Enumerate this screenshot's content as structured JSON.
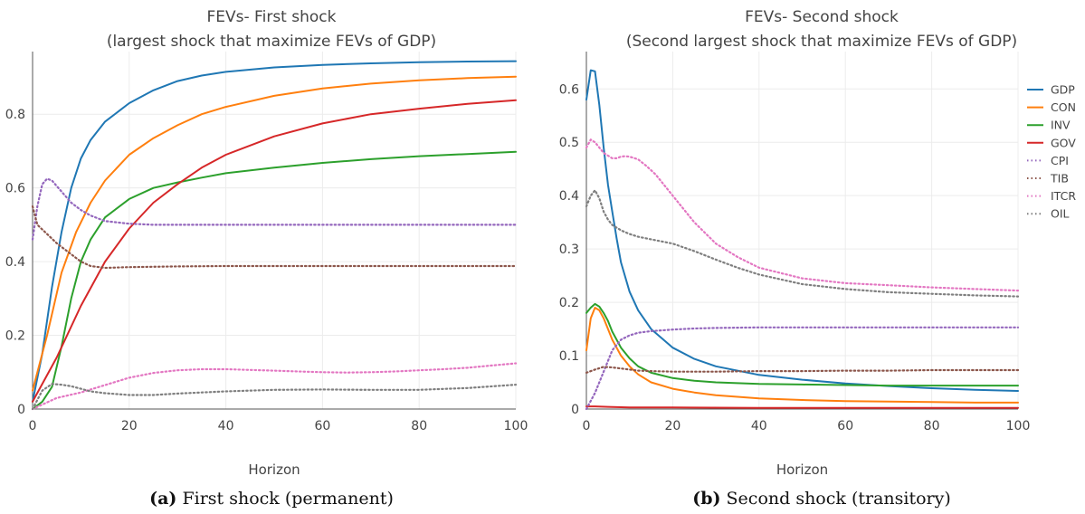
{
  "captions": [
    {
      "tag": "(a)",
      "text": " First shock (permanent)"
    },
    {
      "tag": "(b)",
      "text": " Second shock (transitory)"
    }
  ],
  "chart_data": [
    {
      "type": "line",
      "title": "FEVs- First shock",
      "subtitle": "(largest shock that maximize FEVs of GDP)",
      "xlabel": "Horizon",
      "ylabel": "",
      "xlim": [
        0,
        100
      ],
      "ylim": [
        0,
        0.97
      ],
      "xticks": [
        0,
        20,
        40,
        60,
        80,
        100
      ],
      "yticks": [
        0,
        0.2,
        0.4,
        0.6,
        0.8
      ],
      "yticklabels": [
        "0",
        "0.2",
        "0.4",
        "0.6",
        "0.8"
      ],
      "grid": true,
      "legend": "none",
      "series": [
        {
          "name": "GDP",
          "color": "#1f77b4",
          "style": "solid",
          "x": [
            0,
            2,
            4,
            6,
            8,
            10,
            12,
            15,
            18,
            20,
            25,
            30,
            35,
            40,
            50,
            60,
            70,
            80,
            90,
            100
          ],
          "y": [
            0.02,
            0.15,
            0.33,
            0.48,
            0.6,
            0.68,
            0.73,
            0.78,
            0.81,
            0.83,
            0.865,
            0.89,
            0.905,
            0.915,
            0.927,
            0.934,
            0.938,
            0.941,
            0.943,
            0.944
          ]
        },
        {
          "name": "CON",
          "color": "#ff7f0e",
          "style": "solid",
          "x": [
            0,
            3,
            6,
            9,
            12,
            15,
            20,
            25,
            30,
            35,
            40,
            50,
            60,
            70,
            80,
            90,
            100
          ],
          "y": [
            0.05,
            0.2,
            0.37,
            0.48,
            0.56,
            0.62,
            0.69,
            0.735,
            0.77,
            0.8,
            0.82,
            0.85,
            0.87,
            0.883,
            0.892,
            0.898,
            0.902
          ]
        },
        {
          "name": "INV",
          "color": "#2ca02c",
          "style": "solid",
          "x": [
            0,
            2,
            4,
            6,
            8,
            10,
            12,
            15,
            20,
            25,
            30,
            35,
            40,
            50,
            60,
            70,
            80,
            90,
            100
          ],
          "y": [
            0.0,
            0.02,
            0.06,
            0.17,
            0.3,
            0.4,
            0.46,
            0.52,
            0.57,
            0.6,
            0.615,
            0.628,
            0.64,
            0.655,
            0.668,
            0.678,
            0.686,
            0.692,
            0.698
          ]
        },
        {
          "name": "GOV",
          "color": "#d62728",
          "style": "solid",
          "x": [
            0,
            5,
            10,
            15,
            20,
            25,
            30,
            35,
            40,
            50,
            60,
            70,
            80,
            90,
            100
          ],
          "y": [
            0.02,
            0.14,
            0.28,
            0.4,
            0.49,
            0.56,
            0.61,
            0.655,
            0.69,
            0.74,
            0.775,
            0.8,
            0.815,
            0.828,
            0.838
          ]
        },
        {
          "name": "CPI",
          "color": "#9467bd",
          "style": "dotted",
          "x": [
            0,
            1,
            2,
            3,
            4,
            6,
            8,
            10,
            12,
            15,
            20,
            25,
            30,
            40,
            50,
            60,
            70,
            80,
            90,
            100
          ],
          "y": [
            0.46,
            0.55,
            0.61,
            0.625,
            0.62,
            0.59,
            0.56,
            0.54,
            0.525,
            0.51,
            0.503,
            0.5,
            0.5,
            0.5,
            0.5,
            0.5,
            0.5,
            0.5,
            0.5,
            0.5
          ]
        },
        {
          "name": "TIB",
          "color": "#8c564b",
          "style": "dotted",
          "x": [
            0,
            1,
            3,
            5,
            8,
            10,
            12,
            15,
            20,
            25,
            30,
            40,
            50,
            60,
            70,
            80,
            90,
            100
          ],
          "y": [
            0.55,
            0.5,
            0.475,
            0.45,
            0.42,
            0.4,
            0.388,
            0.383,
            0.385,
            0.386,
            0.387,
            0.388,
            0.388,
            0.388,
            0.388,
            0.388,
            0.388,
            0.388
          ]
        },
        {
          "name": "ITCR",
          "color": "#e377c2",
          "style": "dotted",
          "x": [
            0,
            5,
            10,
            15,
            20,
            25,
            30,
            35,
            40,
            45,
            50,
            55,
            60,
            65,
            70,
            75,
            80,
            85,
            90,
            95,
            100
          ],
          "y": [
            0.0,
            0.03,
            0.045,
            0.065,
            0.085,
            0.098,
            0.105,
            0.108,
            0.108,
            0.106,
            0.104,
            0.102,
            0.1,
            0.099,
            0.1,
            0.102,
            0.105,
            0.108,
            0.112,
            0.118,
            0.124
          ]
        },
        {
          "name": "OIL",
          "color": "#7f7f7f",
          "style": "dotted",
          "x": [
            0,
            2,
            4,
            6,
            8,
            10,
            12,
            15,
            20,
            25,
            30,
            40,
            50,
            60,
            70,
            80,
            90,
            100
          ],
          "y": [
            0.0,
            0.05,
            0.068,
            0.066,
            0.062,
            0.055,
            0.048,
            0.043,
            0.038,
            0.038,
            0.042,
            0.048,
            0.052,
            0.053,
            0.052,
            0.052,
            0.057,
            0.066
          ]
        }
      ]
    },
    {
      "type": "line",
      "title": "FEVs- Second shock",
      "subtitle": "(Second largest shock that maximize FEVs of GDP)",
      "xlabel": "Horizon",
      "ylabel": "",
      "xlim": [
        0,
        100
      ],
      "ylim": [
        0,
        0.67
      ],
      "xticks": [
        0,
        20,
        40,
        60,
        80,
        100
      ],
      "yticks": [
        0,
        0.1,
        0.2,
        0.3,
        0.4,
        0.5,
        0.6
      ],
      "yticklabels": [
        "0",
        "0.1",
        "0.2",
        "0.3",
        "0.4",
        "0.5",
        "0.6"
      ],
      "grid": true,
      "legend": "right",
      "series": [
        {
          "name": "GDP",
          "color": "#1f77b4",
          "style": "solid",
          "x": [
            0,
            1,
            2,
            3,
            4,
            5,
            6,
            7,
            8,
            10,
            12,
            15,
            20,
            25,
            30,
            40,
            50,
            60,
            70,
            80,
            90,
            100
          ],
          "y": [
            0.58,
            0.635,
            0.633,
            0.57,
            0.49,
            0.42,
            0.37,
            0.32,
            0.275,
            0.22,
            0.185,
            0.15,
            0.115,
            0.094,
            0.08,
            0.064,
            0.055,
            0.048,
            0.043,
            0.039,
            0.036,
            0.034
          ]
        },
        {
          "name": "CON",
          "color": "#ff7f0e",
          "style": "solid",
          "x": [
            0,
            1,
            2,
            3,
            4,
            5,
            6,
            8,
            10,
            12,
            15,
            20,
            25,
            30,
            40,
            50,
            60,
            70,
            80,
            90,
            100
          ],
          "y": [
            0.11,
            0.17,
            0.19,
            0.185,
            0.17,
            0.15,
            0.13,
            0.1,
            0.08,
            0.065,
            0.05,
            0.038,
            0.031,
            0.026,
            0.02,
            0.017,
            0.015,
            0.014,
            0.013,
            0.012,
            0.012
          ]
        },
        {
          "name": "INV",
          "color": "#2ca02c",
          "style": "solid",
          "x": [
            0,
            1,
            2,
            3,
            4,
            5,
            6,
            8,
            10,
            12,
            15,
            20,
            25,
            30,
            40,
            50,
            60,
            70,
            80,
            90,
            100
          ],
          "y": [
            0.18,
            0.19,
            0.197,
            0.192,
            0.18,
            0.165,
            0.145,
            0.115,
            0.095,
            0.08,
            0.068,
            0.058,
            0.053,
            0.05,
            0.047,
            0.046,
            0.045,
            0.044,
            0.044,
            0.044,
            0.044
          ]
        },
        {
          "name": "GOV",
          "color": "#d62728",
          "style": "solid",
          "x": [
            0,
            2,
            5,
            10,
            20,
            40,
            60,
            80,
            100
          ],
          "y": [
            0.005,
            0.005,
            0.004,
            0.003,
            0.003,
            0.002,
            0.002,
            0.002,
            0.002
          ]
        },
        {
          "name": "CPI",
          "color": "#9467bd",
          "style": "dotted",
          "x": [
            0,
            2,
            4,
            6,
            8,
            10,
            12,
            15,
            20,
            25,
            30,
            40,
            50,
            60,
            70,
            80,
            90,
            100
          ],
          "y": [
            0.0,
            0.03,
            0.07,
            0.11,
            0.13,
            0.138,
            0.143,
            0.146,
            0.149,
            0.151,
            0.152,
            0.153,
            0.153,
            0.153,
            0.153,
            0.153,
            0.153,
            0.153
          ]
        },
        {
          "name": "TIB",
          "color": "#8c564b",
          "style": "dotted",
          "x": [
            0,
            2,
            4,
            6,
            8,
            10,
            12,
            15,
            20,
            25,
            30,
            40,
            50,
            60,
            70,
            80,
            90,
            100
          ],
          "y": [
            0.068,
            0.074,
            0.079,
            0.078,
            0.076,
            0.074,
            0.072,
            0.071,
            0.07,
            0.07,
            0.07,
            0.071,
            0.071,
            0.072,
            0.072,
            0.073,
            0.073,
            0.073
          ]
        },
        {
          "name": "ITCR",
          "color": "#e377c2",
          "style": "dotted",
          "x": [
            0,
            1,
            2,
            3,
            4,
            5,
            6,
            7,
            8,
            9,
            10,
            12,
            14,
            16,
            18,
            20,
            25,
            30,
            35,
            40,
            50,
            60,
            70,
            80,
            90,
            100
          ],
          "y": [
            0.49,
            0.505,
            0.5,
            0.49,
            0.48,
            0.475,
            0.47,
            0.47,
            0.473,
            0.474,
            0.473,
            0.468,
            0.455,
            0.44,
            0.42,
            0.4,
            0.35,
            0.31,
            0.285,
            0.265,
            0.245,
            0.236,
            0.232,
            0.228,
            0.225,
            0.222
          ]
        },
        {
          "name": "OIL",
          "color": "#7f7f7f",
          "style": "dotted",
          "x": [
            0,
            1,
            2,
            3,
            4,
            5,
            6,
            8,
            10,
            12,
            15,
            20,
            25,
            30,
            35,
            40,
            50,
            60,
            70,
            80,
            90,
            100
          ],
          "y": [
            0.38,
            0.4,
            0.41,
            0.395,
            0.37,
            0.355,
            0.345,
            0.335,
            0.328,
            0.323,
            0.318,
            0.31,
            0.296,
            0.28,
            0.265,
            0.252,
            0.234,
            0.225,
            0.219,
            0.216,
            0.213,
            0.211
          ]
        }
      ]
    }
  ]
}
